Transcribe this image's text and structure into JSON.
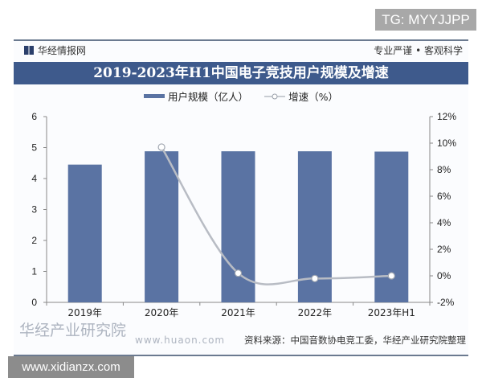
{
  "watermark_top": "TG: MYYJJPP",
  "watermark_bottom": "www.xidianzx.com",
  "header": {
    "brand": "华经情报网",
    "slogan": "专业严谨 • 客观科学"
  },
  "logo_watermark": {
    "name": "华经产业研究院",
    "url": "www.huaon.com"
  },
  "source": "资料来源：中国音数协电竞工委，华经产业研究院整理",
  "colors": {
    "bar": "#5a73a3",
    "line": "#b8bcc4",
    "title_band": "#3e5a8c"
  },
  "chart_data": {
    "type": "bar+line",
    "title": "2019-2023年H1中国电子竞技用户规模及增速",
    "categories": [
      "2019年",
      "2020年",
      "2021年",
      "2022年",
      "2023年H1"
    ],
    "series": [
      {
        "name": "用户规模（亿人）",
        "type": "bar",
        "axis": "left",
        "values": [
          4.45,
          4.88,
          4.88,
          4.88,
          4.87
        ]
      },
      {
        "name": "增速（%）",
        "type": "line",
        "axis": "right",
        "values": [
          null,
          9.7,
          0.2,
          -0.2,
          0.0
        ]
      }
    ],
    "y_left": {
      "range": [
        0,
        6
      ],
      "ticks": [
        "0",
        "1",
        "2",
        "3",
        "4",
        "5",
        "6"
      ]
    },
    "y_right": {
      "range": [
        -2,
        12
      ],
      "ticks": [
        "-2%",
        "0%",
        "2%",
        "4%",
        "6%",
        "8%",
        "10%",
        "12%"
      ]
    },
    "grid": false,
    "legend": "top-center"
  }
}
